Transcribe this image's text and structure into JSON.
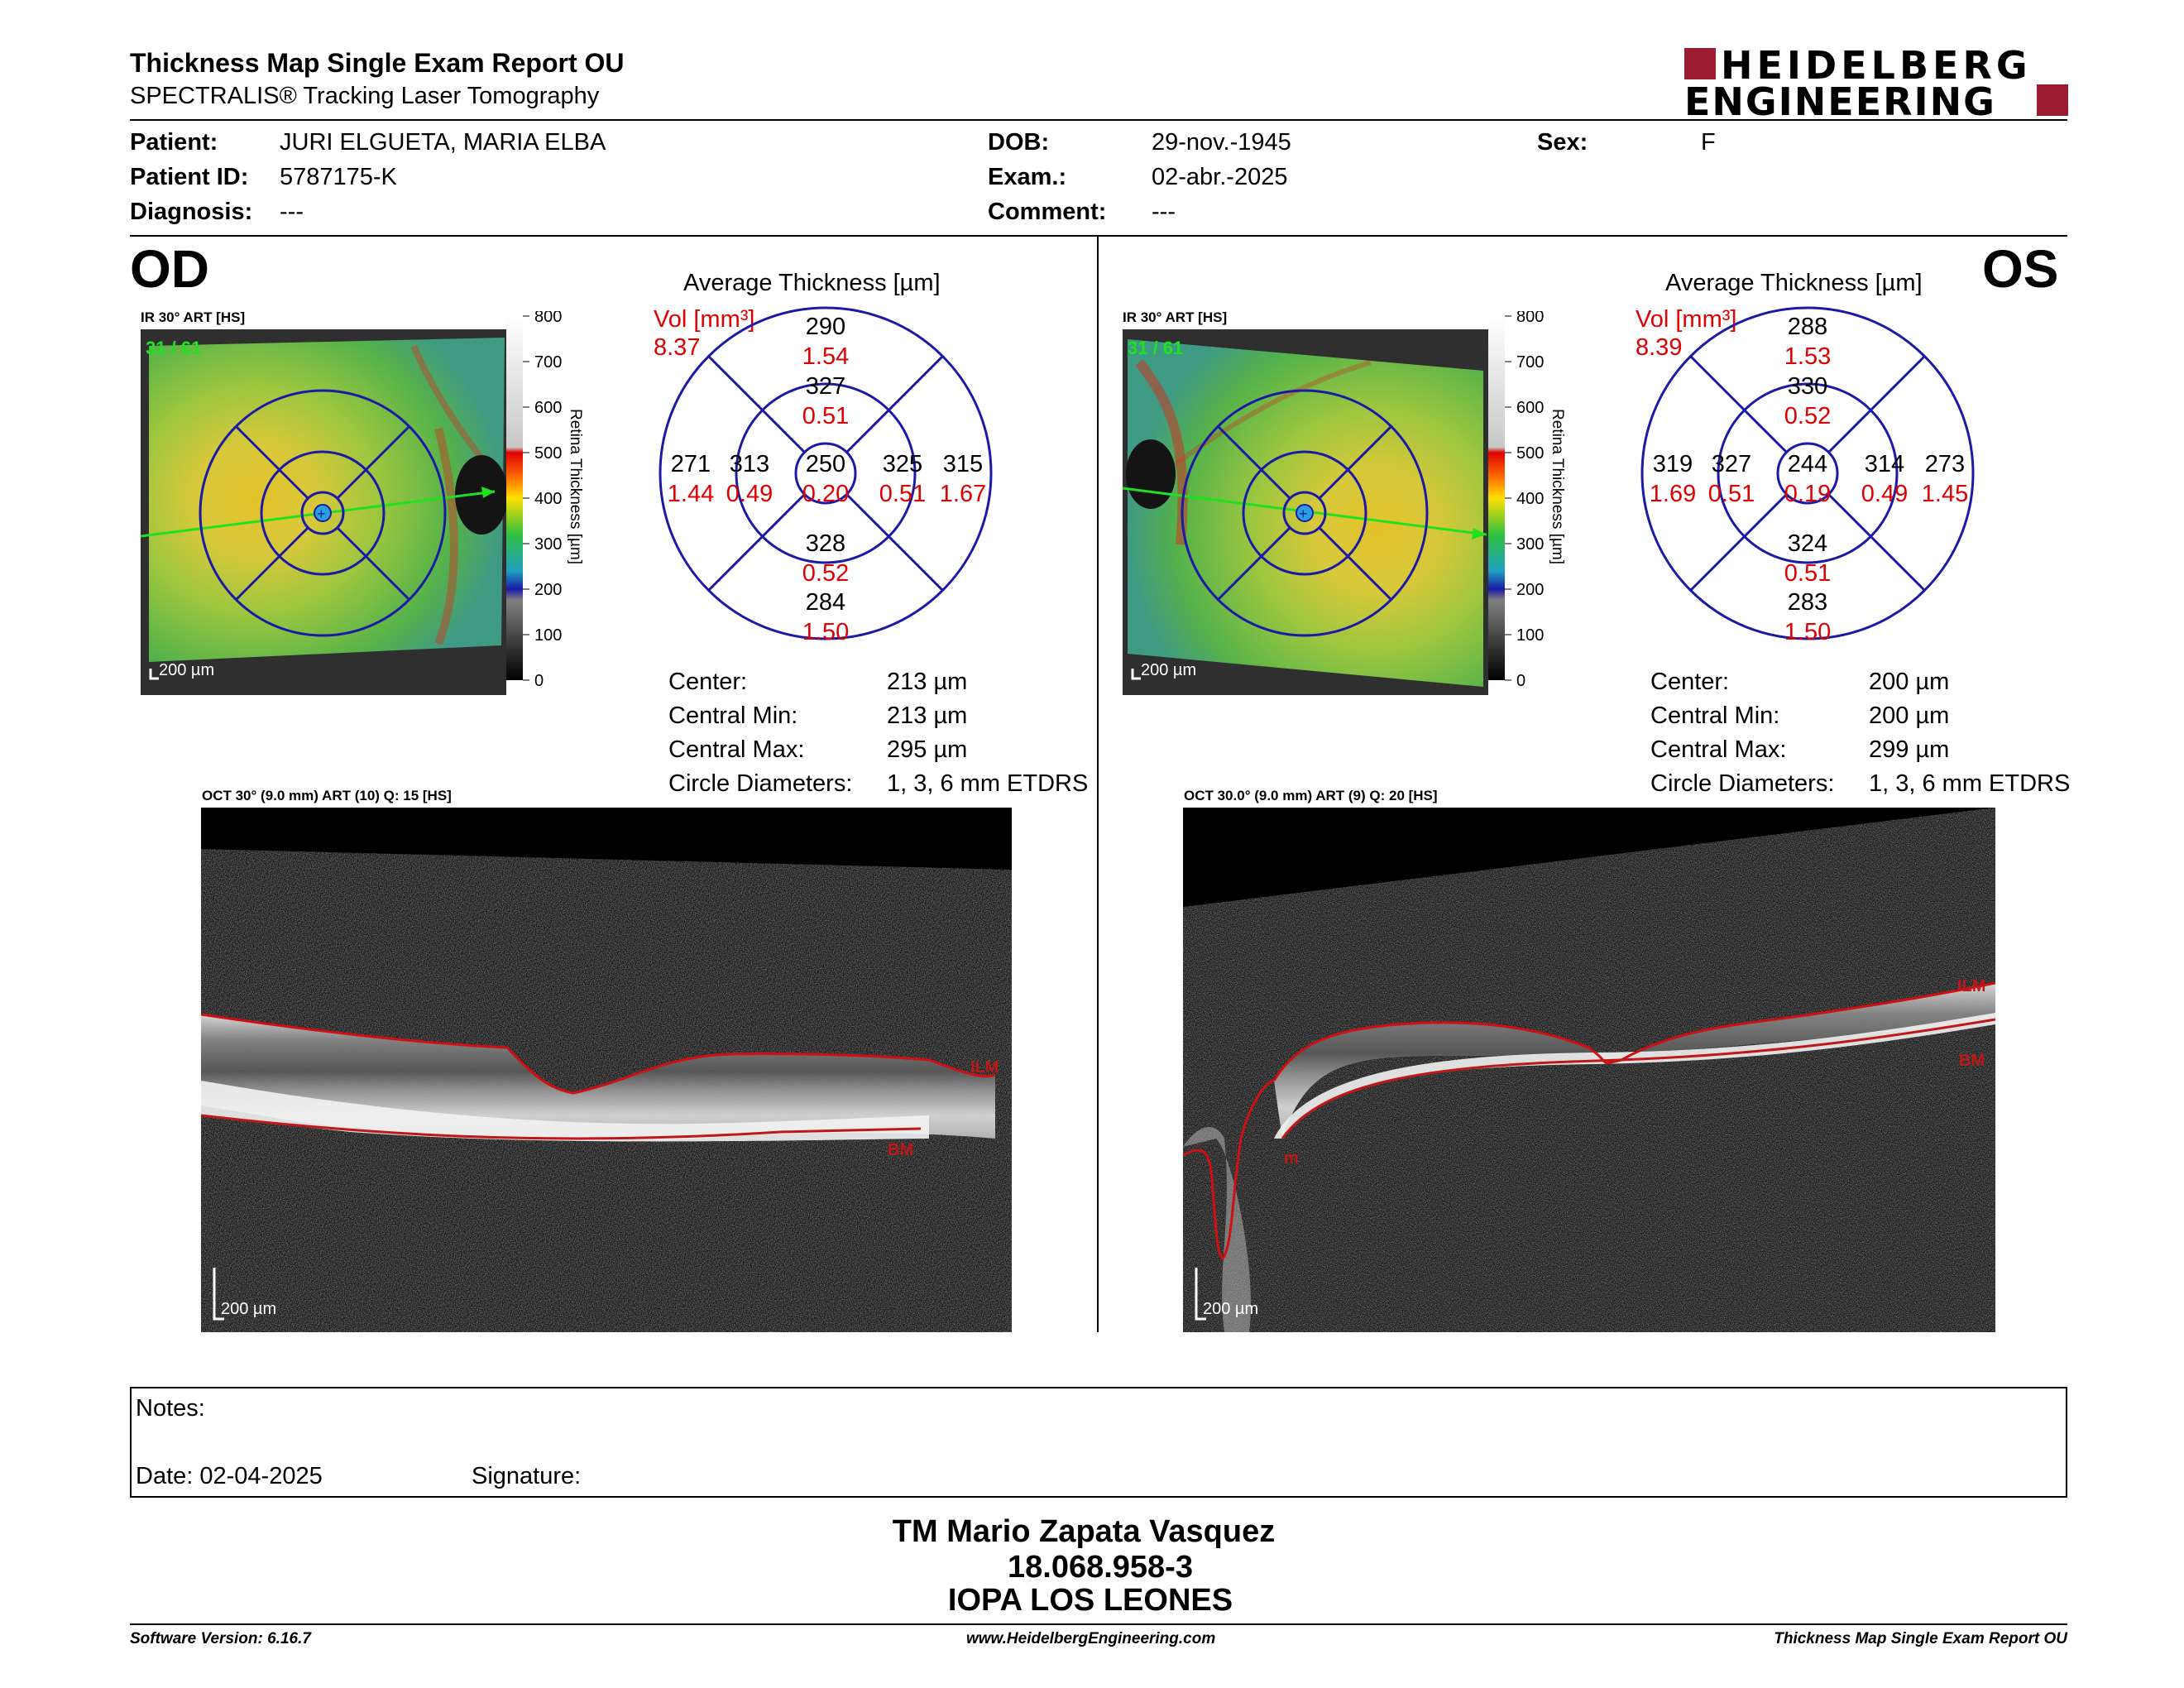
{
  "report": {
    "title": "Thickness Map Single Exam Report OU",
    "subtitle": "SPECTRALIS® Tracking Laser Tomography",
    "logo_line1": "HEIDELBERG",
    "logo_line2": "ENGINEERING",
    "brand_color": "#9b1b30"
  },
  "patient": {
    "patient_label": "Patient:",
    "patient_value": "JURI ELGUETA, MARIA ELBA",
    "id_label": "Patient ID:",
    "id_value": "5787175-K",
    "diagnosis_label": "Diagnosis:",
    "diagnosis_value": "---",
    "dob_label": "DOB:",
    "dob_value": "29-nov.-1945",
    "exam_label": "Exam.:",
    "exam_value": "02-abr.-2025",
    "comment_label": "Comment:",
    "comment_value": "---",
    "sex_label": "Sex:",
    "sex_value": "F"
  },
  "od": {
    "eye_label": "OD",
    "ir_label": "IR 30° ART [HS]",
    "frame_count": "31 / 61",
    "scale_label": "200 µm",
    "avg_title": "Average Thickness [µm]",
    "vol_label": "Vol [mm³]",
    "vol_value": "8.37",
    "sectors": {
      "outer_sup": [
        "290",
        "1.54"
      ],
      "inner_sup": [
        "327",
        "0.51"
      ],
      "outer_nasal_left": [
        "271",
        "1.44"
      ],
      "inner_left": [
        "313",
        "0.49"
      ],
      "center": [
        "250",
        "0.20"
      ],
      "inner_right": [
        "325",
        "0.51"
      ],
      "outer_right": [
        "315",
        "1.67"
      ],
      "inner_inf": [
        "328",
        "0.52"
      ],
      "outer_inf": [
        "284",
        "1.50"
      ]
    },
    "center_label": "Center:",
    "center_value": "213 µm",
    "cmin_label": "Central Min:",
    "cmin_value": "213 µm",
    "cmax_label": "Central Max:",
    "cmax_value": "295 µm",
    "circ_label": "Circle Diameters:",
    "circ_value": "1, 3, 6 mm ETDRS",
    "oct_label": "OCT 30° (9.0 mm) ART (10) Q: 15 [HS]",
    "oct_scale": "200 µm",
    "ilm": "ILM",
    "bm": "BM"
  },
  "os": {
    "eye_label": "OS",
    "ir_label": "IR 30° ART [HS]",
    "frame_count": "31 / 61",
    "scale_label": "200 µm",
    "avg_title": "Average Thickness [µm]",
    "vol_label": "Vol [mm³]",
    "vol_value": "8.39",
    "sectors": {
      "outer_sup": [
        "288",
        "1.53"
      ],
      "inner_sup": [
        "330",
        "0.52"
      ],
      "outer_nasal_left": [
        "319",
        "1.69"
      ],
      "inner_left": [
        "327",
        "0.51"
      ],
      "center": [
        "244",
        "0.19"
      ],
      "inner_right": [
        "314",
        "0.49"
      ],
      "outer_right": [
        "273",
        "1.45"
      ],
      "inner_inf": [
        "324",
        "0.51"
      ],
      "outer_inf": [
        "283",
        "1.50"
      ]
    },
    "center_label": "Center:",
    "center_value": "200 µm",
    "cmin_label": "Central Min:",
    "cmin_value": "200 µm",
    "cmax_label": "Central Max:",
    "cmax_value": "299 µm",
    "circ_label": "Circle Diameters:",
    "circ_value": "1, 3, 6 mm ETDRS",
    "oct_label": "OCT 30.0° (9.0 mm) ART (9) Q: 20 [HS]",
    "oct_scale": "200 µm",
    "ilm": "ILM",
    "bm": "BM",
    "m": "m"
  },
  "colorbar": {
    "ticks": [
      "800",
      "700",
      "600",
      "500",
      "400",
      "300",
      "200",
      "100",
      "0"
    ],
    "title": "Retina Thickness [µm]"
  },
  "notes": {
    "notes_label": "Notes:",
    "date_label": "Date: 02-04-2025",
    "signature_label": "Signature:"
  },
  "signature_block": {
    "line1": "TM Mario Zapata Vasquez",
    "line2": "18.068.958-3",
    "line3": "IOPA LOS LEONES"
  },
  "footer": {
    "software": "Software Version: 6.16.7",
    "website": "www.HeidelbergEngineering.com",
    "report_name": "Thickness Map Single Exam Report OU"
  },
  "colors": {
    "ring_blue": "#1a1aa6",
    "vol_red": "#e00000",
    "seg_red": "#d01010"
  }
}
